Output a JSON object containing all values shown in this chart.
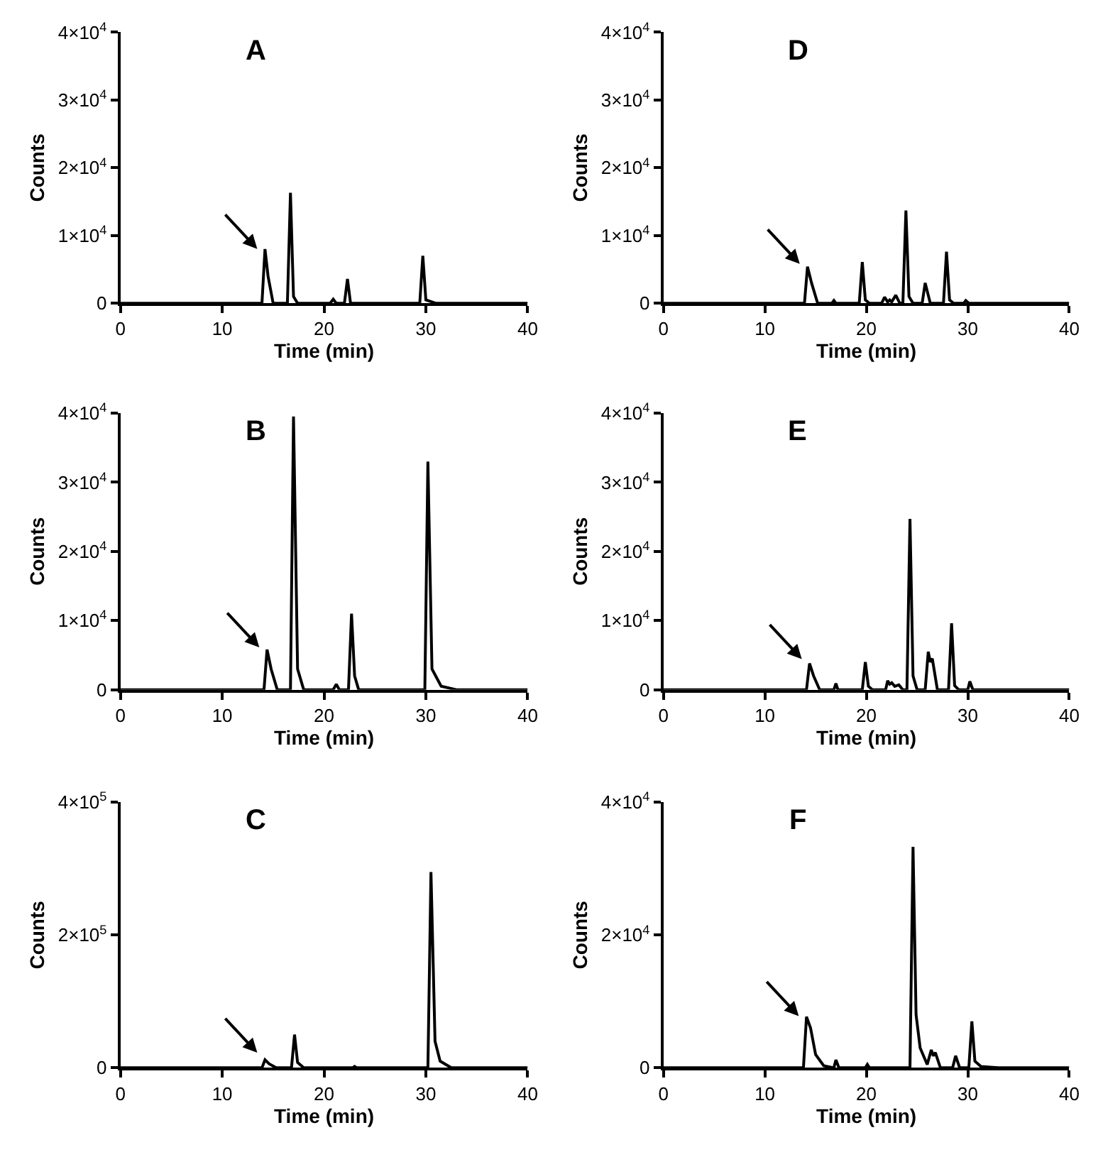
{
  "chart_data": [
    {
      "type": "line",
      "title": "A",
      "xlabel": "Time (min)",
      "ylabel": "Counts",
      "xlim": [
        0,
        40
      ],
      "xticks": [
        0,
        10,
        20,
        30,
        40
      ],
      "ylim": [
        0,
        40000
      ],
      "yticks": [
        0,
        {
          "value": 10000,
          "label": "1×10$^{4}$"
        },
        {
          "value": 20000,
          "label": "2×10$^{4}$"
        },
        {
          "value": 30000,
          "label": "3×10$^{4}$"
        },
        {
          "value": 40000,
          "label": "4×10$^{4}$"
        }
      ],
      "grid": false,
      "marker": "none",
      "line_style": "solid",
      "series": [
        {
          "color": "#000000",
          "x": [
            0,
            13.9,
            14.2,
            14.5,
            15.0,
            16.4,
            16.7,
            17.0,
            17.4,
            20.6,
            20.9,
            21.2,
            22.0,
            22.3,
            22.6,
            29.4,
            29.7,
            30.0,
            31,
            40
          ],
          "values": [
            0,
            0,
            8000,
            4000,
            0,
            0,
            16300,
            1000,
            0,
            0,
            600,
            0,
            0,
            3600,
            0,
            0,
            7000,
            500,
            0,
            0
          ]
        }
      ]
    },
    {
      "type": "line",
      "title": "D",
      "xlabel": "Time (min)",
      "ylabel": "Counts",
      "xlim": [
        0,
        40
      ],
      "xticks": [
        0,
        10,
        20,
        30,
        40
      ],
      "ylim": [
        0,
        40000
      ],
      "yticks": [
        0,
        {
          "value": 10000,
          "label": "1×10$^{4}$"
        },
        {
          "value": 20000,
          "label": "2×10$^{4}$"
        },
        {
          "value": 30000,
          "label": "3×10$^{4}$"
        },
        {
          "value": 40000,
          "label": "4×10$^{4}$"
        }
      ],
      "grid": false,
      "marker": "none",
      "line_style": "solid",
      "series": [
        {
          "color": "#000000",
          "x": [
            0,
            13.9,
            14.2,
            14.6,
            15.2,
            16.6,
            16.8,
            17.0,
            19.3,
            19.6,
            19.9,
            20.3,
            21.5,
            21.8,
            22.1,
            22.3,
            22.5,
            22.9,
            23.3,
            23.6,
            23.9,
            24.2,
            24.6,
            25.5,
            25.8,
            26.3,
            27.6,
            27.9,
            28.2,
            28.6,
            29.6,
            29.8,
            30.1,
            40
          ],
          "values": [
            0,
            0,
            5400,
            3000,
            0,
            0,
            400,
            0,
            0,
            6100,
            500,
            0,
            0,
            900,
            200,
            500,
            200,
            1200,
            0,
            0,
            13700,
            1000,
            0,
            0,
            3000,
            0,
            0,
            7600,
            500,
            0,
            0,
            400,
            0,
            0
          ]
        }
      ]
    },
    {
      "type": "line",
      "title": "B",
      "xlabel": "Time (min)",
      "ylabel": "Counts",
      "xlim": [
        0,
        40
      ],
      "xticks": [
        0,
        10,
        20,
        30,
        40
      ],
      "ylim": [
        0,
        40000
      ],
      "yticks": [
        0,
        {
          "value": 10000,
          "label": "1×10$^{4}$"
        },
        {
          "value": 20000,
          "label": "2×10$^{4}$"
        },
        {
          "value": 30000,
          "label": "3×10$^{4}$"
        },
        {
          "value": 40000,
          "label": "4×10$^{4}$"
        }
      ],
      "grid": false,
      "marker": "none",
      "line_style": "solid",
      "series": [
        {
          "color": "#000000",
          "x": [
            0,
            14.1,
            14.4,
            14.8,
            15.4,
            16.7,
            17.0,
            17.4,
            18.0,
            20.9,
            21.2,
            21.5,
            22.4,
            22.7,
            23.0,
            23.4,
            29.9,
            30.2,
            30.6,
            31.5,
            33,
            40
          ],
          "values": [
            0,
            0,
            5800,
            3000,
            0,
            0,
            39500,
            3000,
            0,
            0,
            800,
            0,
            0,
            11000,
            2000,
            0,
            0,
            33000,
            3000,
            500,
            0,
            0
          ]
        }
      ]
    },
    {
      "type": "line",
      "title": "E",
      "xlabel": "Time (min)",
      "ylabel": "Counts",
      "xlim": [
        0,
        40
      ],
      "xticks": [
        0,
        10,
        20,
        30,
        40
      ],
      "ylim": [
        0,
        40000
      ],
      "yticks": [
        0,
        {
          "value": 10000,
          "label": "1×10$^{4}$"
        },
        {
          "value": 20000,
          "label": "2×10$^{4}$"
        },
        {
          "value": 30000,
          "label": "3×10$^{4}$"
        },
        {
          "value": 40000,
          "label": "4×10$^{4}$"
        }
      ],
      "grid": false,
      "marker": "none",
      "line_style": "solid",
      "series": [
        {
          "color": "#000000",
          "x": [
            0,
            14.1,
            14.4,
            14.8,
            15.4,
            16.8,
            17.0,
            17.2,
            19.6,
            19.9,
            20.2,
            20.6,
            21.9,
            22.1,
            22.3,
            22.5,
            22.8,
            23.2,
            23.6,
            24.0,
            24.3,
            24.6,
            25.0,
            25.8,
            26.1,
            26.3,
            26.5,
            27.0,
            28.1,
            28.4,
            28.7,
            29.1,
            30.0,
            30.2,
            30.5,
            32,
            40
          ],
          "values": [
            0,
            0,
            3800,
            2000,
            0,
            0,
            900,
            0,
            0,
            4000,
            500,
            0,
            0,
            1300,
            800,
            1000,
            500,
            700,
            0,
            0,
            24700,
            2000,
            0,
            0,
            5500,
            4000,
            4500,
            0,
            0,
            9600,
            600,
            0,
            0,
            1200,
            0,
            0,
            0
          ]
        }
      ]
    },
    {
      "type": "line",
      "title": "C",
      "xlabel": "Time (min)",
      "ylabel": "Counts",
      "xlim": [
        0,
        40
      ],
      "xticks": [
        0,
        10,
        20,
        30,
        40
      ],
      "ylim": [
        0,
        400000
      ],
      "yticks": [
        0,
        {
          "value": 200000,
          "label": "2×10$^{5}$"
        },
        {
          "value": 400000,
          "label": "4×10$^{5}$"
        }
      ],
      "grid": false,
      "marker": "none",
      "line_style": "solid",
      "series": [
        {
          "color": "#000000",
          "x": [
            0,
            13.9,
            14.2,
            14.6,
            15.3,
            16.8,
            17.1,
            17.4,
            18,
            22.8,
            23.0,
            23.2,
            30.2,
            30.5,
            30.9,
            31.4,
            32.5,
            40
          ],
          "values": [
            0,
            0,
            12000,
            6000,
            0,
            0,
            50000,
            8000,
            0,
            0,
            2000,
            0,
            0,
            295000,
            40000,
            10000,
            0,
            0
          ]
        }
      ]
    },
    {
      "type": "line",
      "title": "F",
      "xlabel": "Time (min)",
      "ylabel": "Counts",
      "xlim": [
        0,
        40
      ],
      "xticks": [
        0,
        10,
        20,
        30,
        40
      ],
      "ylim": [
        0,
        40000
      ],
      "yticks": [
        0,
        {
          "value": 20000,
          "label": "2×10$^{4}$"
        },
        {
          "value": 40000,
          "label": "4×10$^{4}$"
        }
      ],
      "grid": false,
      "marker": "none",
      "line_style": "solid",
      "series": [
        {
          "color": "#000000",
          "x": [
            0,
            13.8,
            14.1,
            14.5,
            15.0,
            15.8,
            16.8,
            17.0,
            17.3,
            19.9,
            20.1,
            20.3,
            22.5,
            24.3,
            24.6,
            24.9,
            25.3,
            26.0,
            26.4,
            26.6,
            26.8,
            27.3,
            28.5,
            28.8,
            29.2,
            30.1,
            30.4,
            30.7,
            31.3,
            33,
            40
          ],
          "values": [
            0,
            0,
            7700,
            6000,
            2000,
            300,
            0,
            1200,
            0,
            0,
            500,
            0,
            0,
            0,
            33300,
            8000,
            3000,
            500,
            2700,
            1800,
            2300,
            0,
            0,
            1800,
            0,
            0,
            7000,
            1000,
            200,
            0,
            0
          ]
        }
      ]
    }
  ]
}
